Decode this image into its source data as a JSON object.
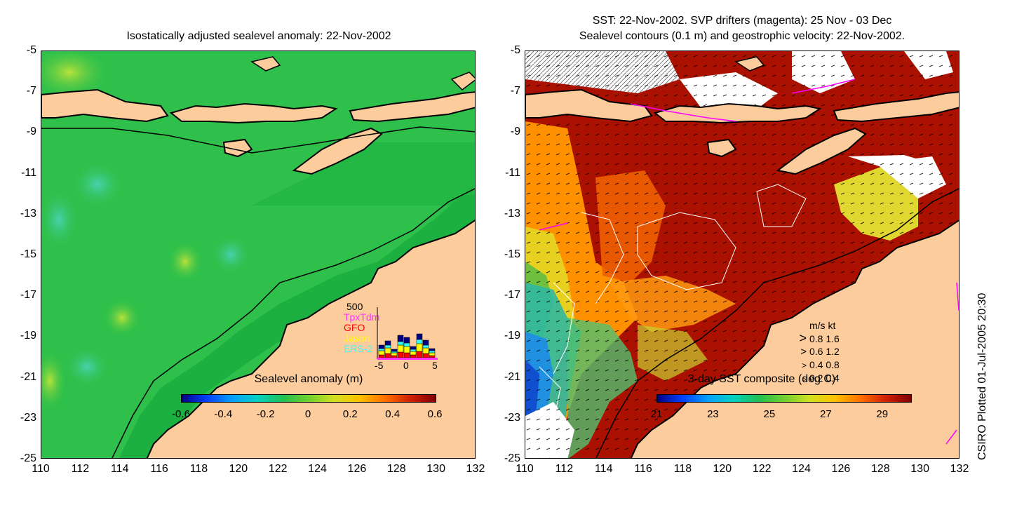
{
  "left_panel": {
    "title": "Isostatically adjusted sealevel anomaly: 22-Nov-2002",
    "y_ticks": [
      "-5",
      "-7",
      "-9",
      "-11",
      "-13",
      "-15",
      "-17",
      "-19",
      "-21",
      "-23",
      "-25"
    ],
    "x_ticks": [
      "110",
      "112",
      "114",
      "116",
      "118",
      "120",
      "122",
      "124",
      "126",
      "128",
      "130",
      "132"
    ],
    "colorbar": {
      "label": "Sealevel anomaly (m)",
      "ticks": [
        "-0.6",
        "-0.4",
        "-0.2",
        "0",
        "0.2",
        "0.4",
        "0.6"
      ],
      "range": [
        -0.6,
        0.6
      ]
    },
    "histogram": {
      "ymax_label": "500",
      "x_ticks": [
        "-5",
        "0",
        "5"
      ],
      "legend": [
        {
          "name": "TpxTdm",
          "color": "#ff33ff"
        },
        {
          "name": "GFO",
          "color": "#ff0000"
        },
        {
          "name": "Jason",
          "color": "#ffff00"
        },
        {
          "name": "ERS-2",
          "color": "#33ffff"
        }
      ]
    }
  },
  "right_panel": {
    "title_line1": "SST: 22-Nov-2002. SVP drifters (magenta): 25 Nov - 03 Dec",
    "title_line2": "Sealevel contours (0.1 m) and geostrophic velocity: 22-Nov-2002.",
    "y_ticks": [
      "-5",
      "-7",
      "-9",
      "-11",
      "-13",
      "-15",
      "-17",
      "-19",
      "-21",
      "-23",
      "-25"
    ],
    "x_ticks": [
      "110",
      "112",
      "114",
      "116",
      "118",
      "120",
      "122",
      "124",
      "126",
      "128",
      "130",
      "132"
    ],
    "colorbar": {
      "label": "3-day SST composite (deg C)",
      "ticks": [
        "21",
        "23",
        "25",
        "27",
        "29"
      ],
      "range": [
        21,
        30
      ]
    },
    "velocity_legend": {
      "header": "m/s  kt",
      "rows": [
        "0.8  1.6",
        "0.6  1.2",
        "0.4  0.8",
        "0.2  0.4"
      ]
    }
  },
  "side_note": "CSIRO Plotted 01-Jul-2005 20:30",
  "colors": {
    "land": "#fccc9c",
    "sea_green": "#22bb44",
    "white_cloud": "#ffffff",
    "sst_hot": "#aa1100"
  }
}
